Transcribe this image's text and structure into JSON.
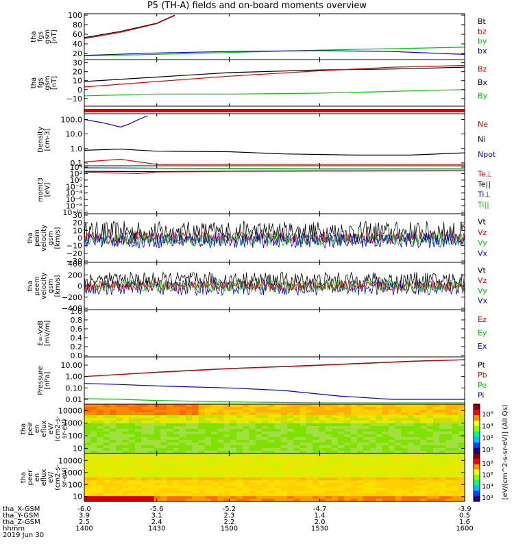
{
  "title": "P5 (TH-A) fields and on-board moments overview",
  "colors": {
    "black": "#000000",
    "red": "#e00000",
    "green": "#00c800",
    "blue": "#0000e0"
  },
  "chart_data": [
    {
      "type": "line",
      "panel": "fgs-gsm-bt-bz",
      "ylabel": [
        "tha",
        "fgs",
        "gsm",
        "[nT]"
      ],
      "ylim": [
        10,
        100
      ],
      "yticks": [
        "100",
        "80",
        "60",
        "40",
        "20"
      ],
      "yticks_values": [
        100,
        80,
        60,
        40,
        20
      ],
      "legend": [
        {
          "name": "Bt",
          "color": "black"
        },
        {
          "name": "bz",
          "color": "red"
        },
        {
          "name": "by",
          "color": "green"
        },
        {
          "name": "bx",
          "color": "blue"
        }
      ],
      "series": [
        {
          "name": "Bt",
          "color": "black",
          "x": [
            -6.0,
            -5.8,
            -5.6,
            -5.5
          ],
          "y": [
            53,
            66,
            83,
            100
          ]
        },
        {
          "name": "bz",
          "color": "red",
          "x": [
            -6.0,
            -5.8,
            -5.6,
            -5.5
          ],
          "y": [
            51,
            64,
            82,
            99
          ]
        },
        {
          "name": "by",
          "color": "green",
          "x": [
            -6.0,
            -5.6,
            -5.2,
            -4.7,
            -3.9
          ],
          "y": [
            15,
            18,
            22,
            27,
            33
          ]
        },
        {
          "name": "bx",
          "color": "blue",
          "x": [
            -6.0,
            -5.6,
            -5.2,
            -4.7,
            -4.3,
            -3.9
          ],
          "y": [
            16,
            21,
            24,
            26,
            24,
            18
          ]
        }
      ]
    },
    {
      "type": "line",
      "panel": "fgs-gsm-bz-by",
      "ylabel": [
        "tha",
        "fgs",
        "gsm",
        "[nT]"
      ],
      "ylim": [
        -17,
        32
      ],
      "yticks": [
        "30",
        "20",
        "10",
        "0",
        "−10"
      ],
      "yticks_values": [
        30,
        20,
        10,
        0,
        -10
      ],
      "legend": [
        {
          "name": "Bz",
          "color": "red"
        },
        {
          "name": "Bx",
          "color": "black"
        },
        {
          "name": "By",
          "color": "green"
        }
      ],
      "series": [
        {
          "name": "Bx",
          "color": "black",
          "x": [
            -6.0,
            -5.6,
            -5.2,
            -4.7,
            -4.3,
            -3.9
          ],
          "y": [
            9,
            14,
            19,
            22,
            23,
            25
          ]
        },
        {
          "name": "Bz",
          "color": "red",
          "x": [
            -6.0,
            -5.6,
            -5.2,
            -4.7,
            -4.3,
            -3.9
          ],
          "y": [
            3,
            9,
            15,
            21,
            25,
            27
          ]
        },
        {
          "name": "By",
          "color": "green",
          "x": [
            -6.0,
            -5.6,
            -5.2,
            -4.7,
            -4.3,
            -3.9
          ],
          "y": [
            -7,
            -5,
            -5,
            -4,
            -2,
            0
          ]
        }
      ]
    },
    {
      "type": "line",
      "panel": "density",
      "ylabel": [
        "Density",
        "[cm-3]"
      ],
      "yscale": "log",
      "ylim": [
        0.08,
        200
      ],
      "yticks": [
        "100.0",
        "10.0",
        "1.0",
        "0.1"
      ],
      "yticks_values": [
        100,
        10,
        1,
        0.1
      ],
      "legend": [
        {
          "name": "Ne",
          "color": "red"
        },
        {
          "name": "Ni",
          "color": "black"
        },
        {
          "name": "Npot",
          "color": "blue"
        }
      ],
      "series": [
        {
          "name": "Npot",
          "color": "blue",
          "x": [
            -6.0,
            -5.9,
            -5.8,
            -5.75,
            -5.7,
            -5.65
          ],
          "y": [
            100,
            60,
            30,
            50,
            100,
            180
          ]
        },
        {
          "name": "Ni",
          "color": "black",
          "x": [
            -6.0,
            -5.8,
            -5.6,
            -5.2,
            -4.9,
            -4.5,
            -4.2,
            -3.9
          ],
          "y": [
            0.75,
            0.9,
            0.65,
            0.6,
            0.42,
            0.35,
            0.35,
            0.5
          ]
        },
        {
          "name": "Ne",
          "color": "red",
          "x": [
            -6.0,
            -5.8,
            -5.7,
            -5.6,
            -5.2,
            -4.7,
            -3.9
          ],
          "y": [
            0.12,
            0.18,
            0.12,
            0.08,
            0.06,
            0.06,
            0.06
          ]
        }
      ]
    },
    {
      "type": "line",
      "panel": "moments-temperature",
      "ylabel": [
        "momt3",
        "[eV]"
      ],
      "yscale": "log",
      "ylim": [
        1e-10,
        10000.0
      ],
      "yticks": [
        "10⁴",
        "10²",
        "10⁰",
        "10⁻²",
        "10⁻⁴",
        "10⁻⁶",
        "10⁻⁸",
        "10⁻¹⁰"
      ],
      "yticks_values": [
        10000.0,
        100.0,
        1,
        0.01,
        0.0001,
        1e-06,
        1e-08,
        1e-10
      ],
      "legend": [
        {
          "name": "Te⊥",
          "color": "red"
        },
        {
          "name": "Te||",
          "color": "black"
        },
        {
          "name": "Ti⊥",
          "color": "blue"
        },
        {
          "name": "Ti||",
          "color": "green"
        }
      ],
      "series": [
        {
          "name": "Ti⊥",
          "color": "blue",
          "x": [
            -6.0,
            -5.2,
            -4.7,
            -3.9
          ],
          "y": [
            6000,
            4000,
            3000,
            3000
          ]
        },
        {
          "name": "Ti||",
          "color": "green",
          "x": [
            -6.0,
            -5.2,
            -4.7,
            -3.9
          ],
          "y": [
            5000,
            3500,
            2500,
            2500
          ]
        },
        {
          "name": "Te||",
          "color": "black",
          "x": [
            -6.0,
            -5.6,
            -5.2,
            -4.7,
            -3.9
          ],
          "y": [
            500,
            400,
            600,
            700,
            800
          ]
        },
        {
          "name": "Te⊥",
          "color": "red",
          "x": [
            -6.0,
            -5.7,
            -5.6,
            -5.2,
            -4.7,
            -3.9
          ],
          "y": [
            300,
            100,
            300,
            500,
            600,
            700
          ]
        }
      ]
    },
    {
      "type": "line",
      "panel": "peim-velocity-gsm",
      "ylabel": [
        "tha",
        "peim",
        "velocity",
        "gsm",
        "[km/s]"
      ],
      "ylim": [
        -30,
        30
      ],
      "yticks": [
        "30",
        "20",
        "10",
        "0",
        "−10",
        "−20",
        "−30"
      ],
      "yticks_values": [
        30,
        20,
        10,
        0,
        -10,
        -20,
        -30
      ],
      "legend": [
        {
          "name": "Vt",
          "color": "black"
        },
        {
          "name": "Vz",
          "color": "red"
        },
        {
          "name": "Vy",
          "color": "green"
        },
        {
          "name": "Vx",
          "color": "blue"
        }
      ],
      "noise_series": [
        {
          "name": "Vt",
          "color": "black",
          "mean": 8,
          "amp": 14
        },
        {
          "name": "Vz",
          "color": "red",
          "mean": 0,
          "amp": 8
        },
        {
          "name": "Vy",
          "color": "green",
          "mean": -2,
          "amp": 8
        },
        {
          "name": "Vx",
          "color": "blue",
          "mean": -3,
          "amp": 10
        }
      ]
    },
    {
      "type": "line",
      "panel": "peem-velocity-gsm",
      "ylabel": [
        "tha",
        "peem",
        "velocity",
        "gsm",
        "[km/s]"
      ],
      "ylim": [
        -400,
        400
      ],
      "yticks": [
        "400",
        "200",
        "0",
        "−200",
        "−400"
      ],
      "yticks_values": [
        400,
        200,
        0,
        -200,
        -400
      ],
      "legend": [
        {
          "name": "Vt",
          "color": "black"
        },
        {
          "name": "Vz",
          "color": "red"
        },
        {
          "name": "Vy",
          "color": "green"
        },
        {
          "name": "Vx",
          "color": "blue"
        }
      ],
      "noise_series": [
        {
          "name": "Vt",
          "color": "black",
          "mean": 100,
          "amp": 150
        },
        {
          "name": "Vx",
          "color": "blue",
          "mean": -30,
          "amp": 140
        },
        {
          "name": "Vy",
          "color": "green",
          "mean": 0,
          "amp": 110
        },
        {
          "name": "Vz",
          "color": "red",
          "mean": 0,
          "amp": 90
        }
      ]
    },
    {
      "type": "line",
      "panel": "e-field",
      "ylabel": [
        "E=-VxB",
        "[mV/m]"
      ],
      "ylim": [
        0.0,
        1.0
      ],
      "yticks": [
        "1.0",
        "0.8",
        "0.6",
        "0.4",
        "0.2",
        "0.0"
      ],
      "yticks_values": [
        1.0,
        0.8,
        0.6,
        0.4,
        0.2,
        0.0
      ],
      "legend": [
        {
          "name": "Ez",
          "color": "red"
        },
        {
          "name": "Ey",
          "color": "green"
        },
        {
          "name": "Ex",
          "color": "blue"
        }
      ],
      "series": []
    },
    {
      "type": "line",
      "panel": "pressure",
      "ylabel": [
        "Pressure",
        "[nPa]"
      ],
      "yscale": "log",
      "ylim": [
        0.005,
        40
      ],
      "yticks": [
        "10.00",
        "1.00",
        "0.10",
        "0.01"
      ],
      "yticks_values": [
        10,
        1,
        0.1,
        0.01
      ],
      "legend": [
        {
          "name": "Pt",
          "color": "black"
        },
        {
          "name": "Pb",
          "color": "red"
        },
        {
          "name": "Pe",
          "color": "green"
        },
        {
          "name": "Pi",
          "color": "blue"
        }
      ],
      "series": [
        {
          "name": "Pt",
          "color": "black",
          "x": [
            -6.0,
            -5.6,
            -5.2,
            -4.7,
            -4.2,
            -3.9
          ],
          "y": [
            1.0,
            2.4,
            5.0,
            10.0,
            22.0,
            30.0
          ]
        },
        {
          "name": "Pb",
          "color": "red",
          "x": [
            -6.0,
            -5.6,
            -5.2,
            -4.7,
            -4.2,
            -3.9
          ],
          "y": [
            1.0,
            2.3,
            4.8,
            9.5,
            21.0,
            29.0
          ]
        },
        {
          "name": "Pi",
          "color": "blue",
          "x": [
            -6.0,
            -5.8,
            -5.6,
            -5.2,
            -4.9,
            -4.6,
            -4.3,
            -3.9
          ],
          "y": [
            0.25,
            0.2,
            0.15,
            0.1,
            0.06,
            0.02,
            0.01,
            0.01
          ]
        },
        {
          "name": "Pe",
          "color": "green",
          "x": [
            -6.0,
            -5.8,
            -5.6,
            -5.2,
            -4.7,
            -3.9
          ],
          "y": [
            0.012,
            0.01,
            0.008,
            0.006,
            0.005,
            0.005
          ]
        }
      ]
    },
    {
      "type": "heatmap",
      "panel": "peir-en-eflux",
      "ylabel": [
        "tha",
        "peir",
        "en",
        "eflux",
        "eV/",
        "(cm2-s-",
        "sr-eV)"
      ],
      "yscale": "log",
      "ylim": [
        5,
        25000
      ],
      "yticks": [
        "10000",
        "1000",
        "100",
        "10"
      ],
      "yticks_values": [
        10000,
        1000,
        100,
        10
      ],
      "colorbar_ticks": [
        "10⁶",
        "10⁴",
        "10²",
        "10⁰"
      ]
    },
    {
      "type": "heatmap",
      "panel": "peer-en-eflux",
      "ylabel": [
        "tha",
        "peer",
        "en",
        "eflux",
        "eV/",
        "(cm2-s-",
        "sr-eV)"
      ],
      "yscale": "log",
      "ylim": [
        5,
        30000
      ],
      "yticks": [
        "10000",
        "1000",
        "100",
        "10"
      ],
      "yticks_values": [
        10000,
        1000,
        100,
        10
      ],
      "colorbar_ticks": [
        "10⁸",
        "10⁶",
        "10⁴",
        "10²"
      ]
    }
  ],
  "colorbar_label": "[eV/(cm^2-s-sr-eV)] (All Qs)",
  "colorbar_label_overlap": "[eV/(cm^2-s-sr-eV)] (All Qs)",
  "xaxis": {
    "rows": [
      {
        "label": "tha_X-GSM",
        "values": [
          "-6.0",
          "-5.6",
          "-5.2",
          "-4.7",
          "-3.9"
        ]
      },
      {
        "label": "tha_Y-GSM",
        "values": [
          "3.9",
          "3.1",
          "2.3",
          "1.4",
          "0.5"
        ]
      },
      {
        "label": "tha_Z-GSM",
        "values": [
          "2.5",
          "2.4",
          "2.2",
          "2.0",
          "1.6"
        ]
      },
      {
        "label": "hhmm",
        "values": [
          "1400",
          "1430",
          "1500",
          "1530",
          "1600"
        ]
      }
    ],
    "date": "2019 Jun 30"
  }
}
